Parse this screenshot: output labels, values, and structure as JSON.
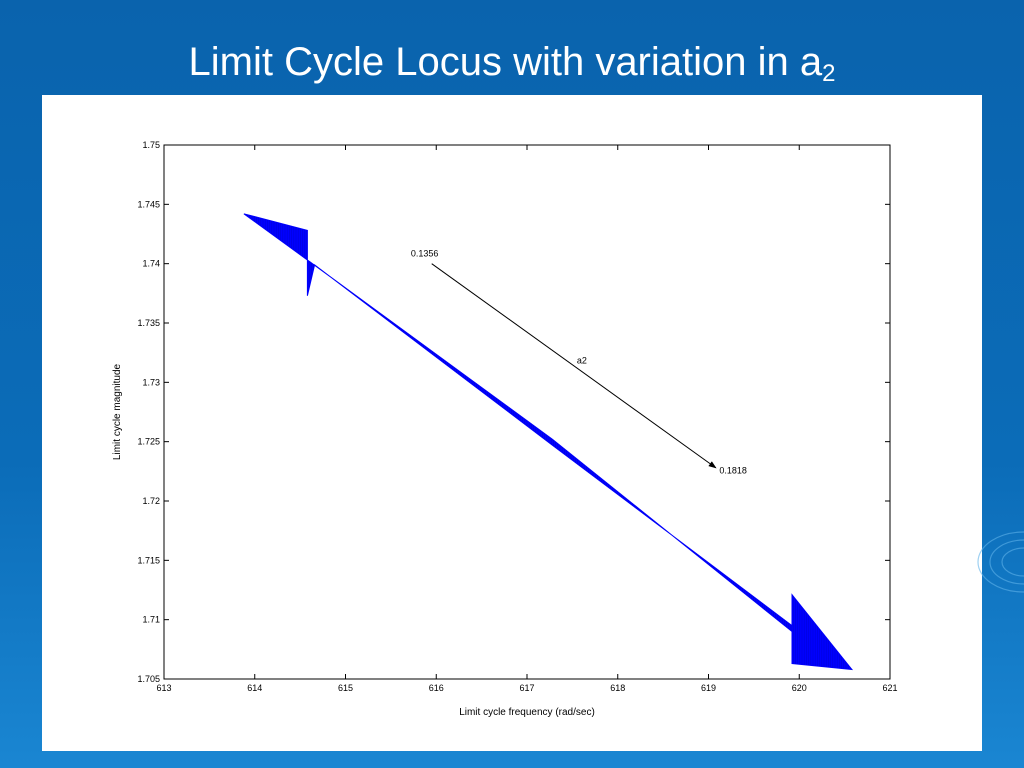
{
  "slide": {
    "title": "Limit Cycle Locus with variation in a",
    "title_sub": "2"
  },
  "chart_data": {
    "type": "area",
    "xlabel": "Limit cycle frequency (rad/sec)",
    "ylabel": "Limit cycle magnitude",
    "xlim": [
      613,
      621
    ],
    "ylim": [
      1.705,
      1.75
    ],
    "xticks": [
      "613",
      "614",
      "615",
      "616",
      "617",
      "618",
      "619",
      "620",
      "621"
    ],
    "yticks": [
      "1.705",
      "1.71",
      "1.715",
      "1.72",
      "1.725",
      "1.73",
      "1.735",
      "1.74",
      "1.745",
      "1.75"
    ],
    "grid": false,
    "series": [
      {
        "color": "#0000ff",
        "polygon": [
          [
            613.88,
            1.7442
          ],
          [
            614.58,
            1.7428
          ],
          [
            614.58,
            1.7373
          ],
          [
            614.66,
            1.7399
          ],
          [
            617.28,
            1.7247
          ],
          [
            619.92,
            1.7095
          ],
          [
            619.92,
            1.7121
          ],
          [
            620.58,
            1.7058
          ],
          [
            619.92,
            1.7063
          ],
          [
            619.92,
            1.709
          ],
          [
            617.28,
            1.7252
          ],
          [
            614.6,
            1.7402
          ]
        ]
      }
    ],
    "annotations": [
      {
        "text": "0.1356",
        "x": 615.72,
        "y": 1.7406
      },
      {
        "text": "a2",
        "x": 617.55,
        "y": 1.7316
      },
      {
        "text": "0.1818",
        "x": 619.12,
        "y": 1.7223
      }
    ],
    "arrow": {
      "from": [
        615.95,
        1.74
      ],
      "to": [
        619.08,
        1.7228
      ]
    }
  }
}
